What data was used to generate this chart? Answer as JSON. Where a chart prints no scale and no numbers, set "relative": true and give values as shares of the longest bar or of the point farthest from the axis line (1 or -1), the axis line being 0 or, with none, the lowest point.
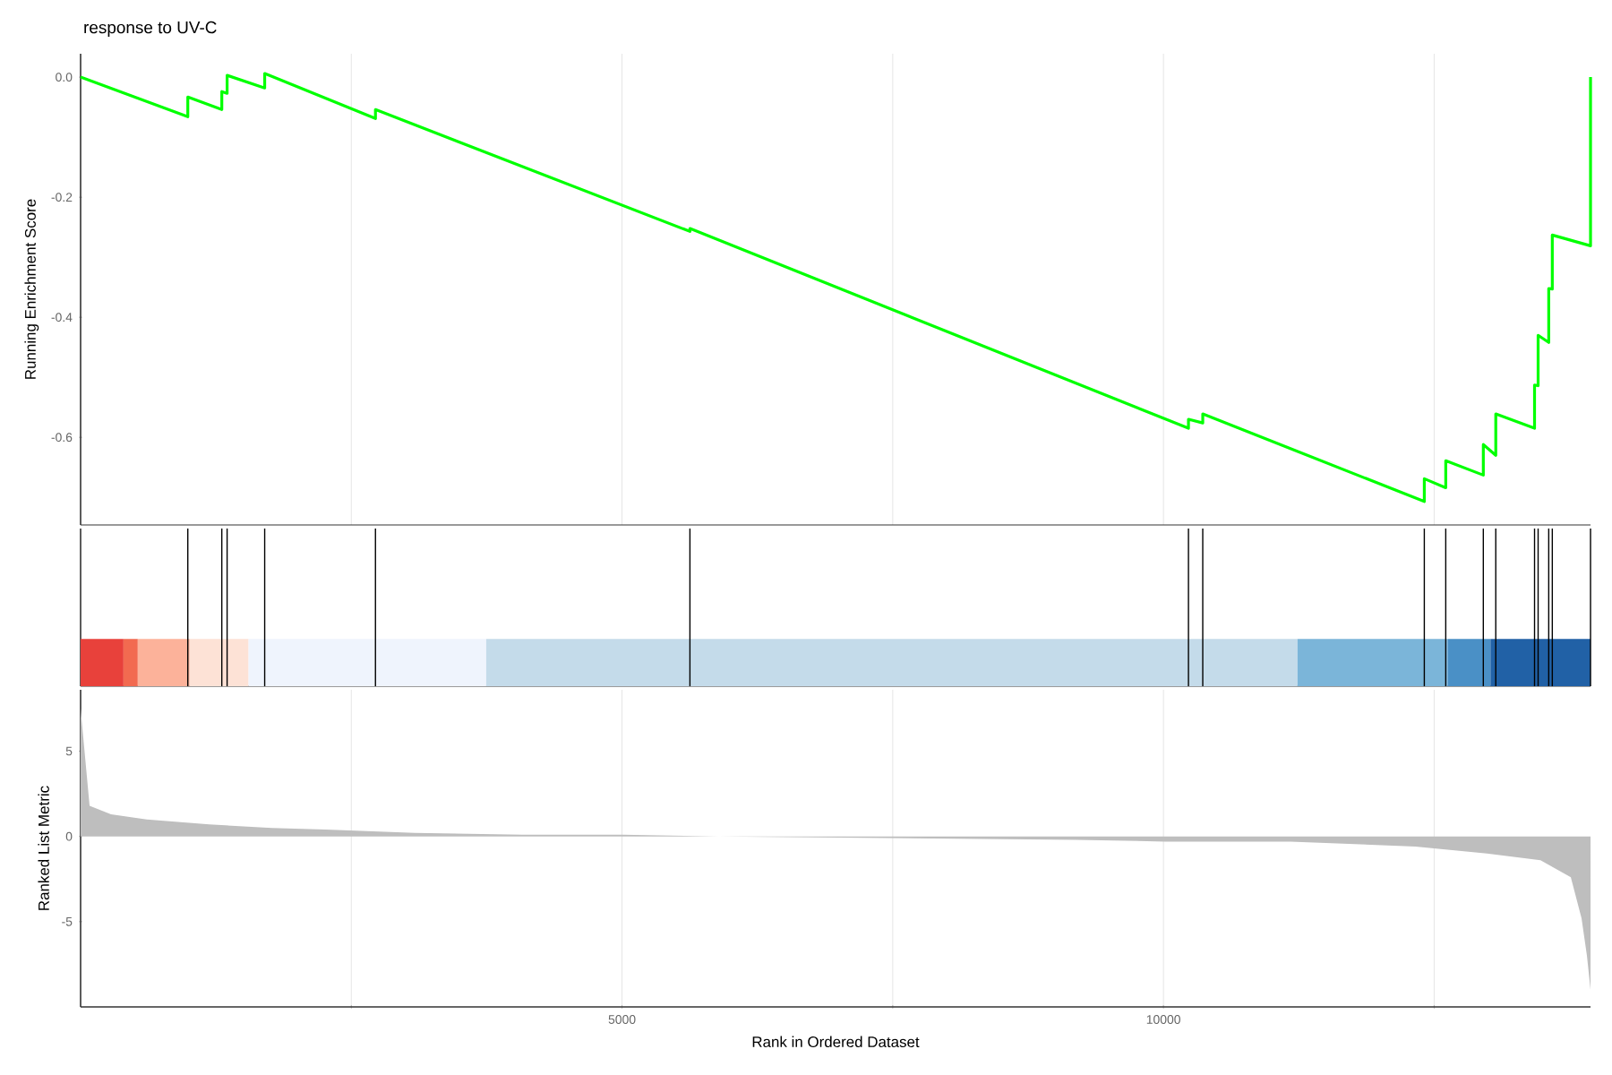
{
  "chart_data": [
    {
      "type": "line",
      "title": "response to UV-C",
      "ylabel": "Running Enrichment Score",
      "color": "#00ff00",
      "x": [
        0,
        990,
        990,
        1304,
        1304,
        1353,
        1353,
        1700,
        1700,
        2723,
        2723,
        5627,
        5627,
        10231,
        10231,
        10363,
        10363,
        12409,
        12409,
        12607,
        12607,
        12954,
        12954,
        13069,
        13069,
        13427,
        13427,
        13460,
        13460,
        13558,
        13558,
        13591,
        13591,
        13944,
        13944
      ],
      "values": [
        0.0,
        -0.066,
        -0.033,
        -0.054,
        -0.024,
        -0.027,
        0.003,
        -0.018,
        0.006,
        -0.069,
        -0.054,
        -0.257,
        -0.252,
        -0.585,
        -0.57,
        -0.576,
        -0.561,
        -0.707,
        -0.669,
        -0.684,
        -0.639,
        -0.663,
        -0.612,
        -0.63,
        -0.561,
        -0.585,
        -0.513,
        -0.514,
        -0.43,
        -0.442,
        -0.352,
        -0.353,
        -0.263,
        -0.281,
        0.0
      ],
      "xlim": [
        0,
        13944
      ],
      "ylim": [
        -0.746,
        0.039
      ],
      "xticks": [
        {
          "value": 2500,
          "label": null
        },
        5000,
        {
          "value": 7500,
          "label": null
        },
        10000,
        {
          "value": 12500,
          "label": null
        }
      ],
      "yticks": [
        {
          "value": 0,
          "label": "0.0"
        },
        -0.2,
        -0.4,
        -0.6
      ],
      "grid": "x",
      "tick_labels": "y"
    },
    {
      "type": "bar",
      "relative": true,
      "color": "#000000",
      "xlim": [
        0,
        13944
      ],
      "x": [
        990,
        1304,
        1353,
        1700,
        2723,
        5627,
        10231,
        10363,
        12409,
        12607,
        12954,
        13069,
        13427,
        13460,
        13558,
        13591,
        13944
      ],
      "values": [
        1,
        1,
        1,
        1,
        1,
        1,
        1,
        1,
        1,
        1,
        1,
        1,
        1,
        1,
        1,
        1,
        1
      ],
      "bands": [
        {
          "axis": "x",
          "from": 0,
          "to": 396,
          "color": "#e8413b"
        },
        {
          "axis": "x",
          "from": 396,
          "to": 528,
          "color": "#f26a50"
        },
        {
          "axis": "x",
          "from": 528,
          "to": 1007,
          "color": "#fcb29a"
        },
        {
          "axis": "x",
          "from": 1007,
          "to": 1551,
          "color": "#fde2d6"
        },
        {
          "axis": "x",
          "from": 1551,
          "to": 3746,
          "color": "#eff4fd"
        },
        {
          "axis": "x",
          "from": 3746,
          "to": 11238,
          "color": "#c4dbea"
        },
        {
          "axis": "x",
          "from": 11238,
          "to": 12624,
          "color": "#7bb5d9"
        },
        {
          "axis": "x",
          "from": 12624,
          "to": 13020,
          "color": "#4a90c6"
        },
        {
          "axis": "x",
          "from": 13020,
          "to": 13944,
          "color": "#2161a6"
        }
      ],
      "tick_labels": false
    },
    {
      "type": "area",
      "xlabel": "Rank in Ordered Dataset",
      "ylabel": "Ranked List Metric",
      "color": "#bebebe",
      "x": [
        0,
        83,
        281,
        611,
        1188,
        1766,
        2261,
        3086,
        4076,
        5000,
        5891,
        7541,
        9191,
        10017,
        11172,
        12327,
        12987,
        13482,
        13762,
        13861,
        13911,
        13944
      ],
      "values": [
        7.5,
        1.8,
        1.3,
        1.0,
        0.7,
        0.5,
        0.4,
        0.2,
        0.1,
        0.1,
        0.0,
        -0.1,
        -0.2,
        -0.3,
        -0.3,
        -0.6,
        -1.0,
        -1.4,
        -2.4,
        -4.8,
        -7.0,
        -9.0
      ],
      "xlim": [
        0,
        13944
      ],
      "ylim": [
        -10,
        8.6
      ],
      "xticks": [
        {
          "value": 2500,
          "label": null
        },
        5000,
        {
          "value": 7500,
          "label": null
        },
        10000,
        {
          "value": 12500,
          "label": null
        }
      ],
      "yticks": [
        -5,
        0,
        5
      ],
      "grid": "x"
    }
  ]
}
